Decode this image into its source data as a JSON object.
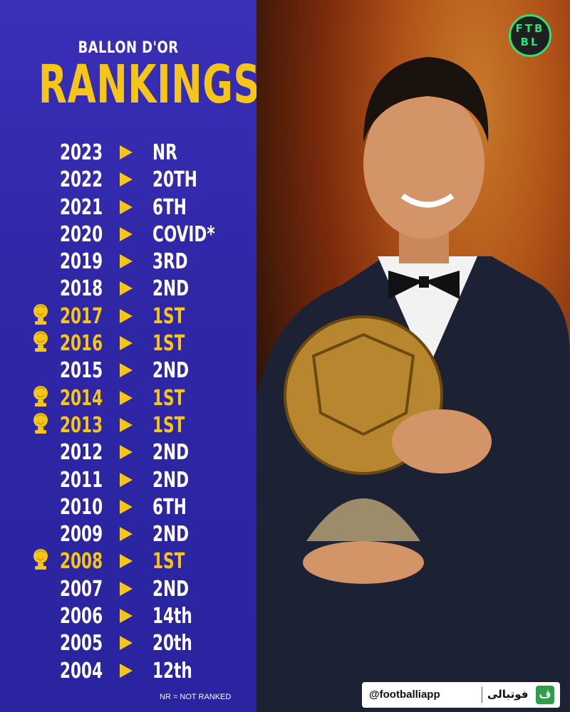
{
  "header": {
    "subtitle": "BALLON D'OR",
    "title": "RANKINGS"
  },
  "rankings": [
    {
      "year": "2023",
      "rank": "NR",
      "win": false
    },
    {
      "year": "2022",
      "rank": "20TH",
      "win": false
    },
    {
      "year": "2021",
      "rank": "6TH",
      "win": false
    },
    {
      "year": "2020",
      "rank": "COVID*",
      "win": false
    },
    {
      "year": "2019",
      "rank": "3RD",
      "win": false
    },
    {
      "year": "2018",
      "rank": "2ND",
      "win": false
    },
    {
      "year": "2017",
      "rank": "1ST",
      "win": true
    },
    {
      "year": "2016",
      "rank": "1ST",
      "win": true
    },
    {
      "year": "2015",
      "rank": "2ND",
      "win": false
    },
    {
      "year": "2014",
      "rank": "1ST",
      "win": true
    },
    {
      "year": "2013",
      "rank": "1ST",
      "win": true
    },
    {
      "year": "2012",
      "rank": "2ND",
      "win": false
    },
    {
      "year": "2011",
      "rank": "2ND",
      "win": false
    },
    {
      "year": "2010",
      "rank": "6TH",
      "win": false
    },
    {
      "year": "2009",
      "rank": "2ND",
      "win": false
    },
    {
      "year": "2008",
      "rank": "1ST",
      "win": true
    },
    {
      "year": "2007",
      "rank": "2ND",
      "win": false
    },
    {
      "year": "2006",
      "rank": "14th",
      "win": false
    },
    {
      "year": "2005",
      "rank": "20th",
      "win": false
    },
    {
      "year": "2004",
      "rank": "12th",
      "win": false
    }
  ],
  "footnote": "NR = NOT RANKED",
  "brand": {
    "line1": "FTB",
    "line2": "BL"
  },
  "social": {
    "handle": "@footballiapp",
    "app_name": "فوتبالی",
    "app_icon_glyph": "ف"
  },
  "icons": {
    "win_marker": "trophy-icon",
    "row_marker": "arrow-right-icon",
    "brand": "ftbl-logo-icon"
  },
  "colors": {
    "panel": "#2f27a6",
    "accent": "#f5c518",
    "text": "#ffffff",
    "brand": "#2ee07a"
  }
}
